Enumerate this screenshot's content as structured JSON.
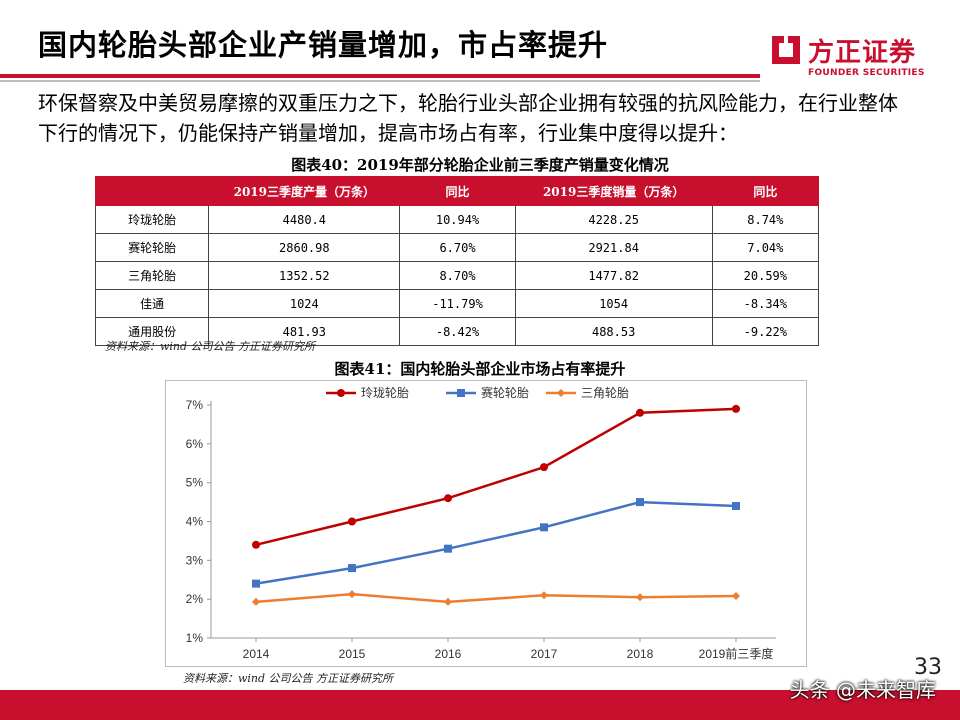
{
  "slide": {
    "title": "国内轮胎头部企业产销量增加，市占率提升",
    "intro": "环保督察及中美贸易摩擦的双重压力之下，轮胎行业头部企业拥有较强的抗风险能力，在行业整体下行的情况下，仍能保持产销量增加，提高市场占有率，行业集中度得以提升：",
    "page_number": "33",
    "watermark": "头条 @未来智库"
  },
  "logo": {
    "name_cn": "方正证券",
    "name_en": "FOUNDER SECURITIES"
  },
  "colors": {
    "brand_red": "#c8102e",
    "series_red": "#c00000",
    "series_blue": "#4472c4",
    "series_orange": "#ed7d31"
  },
  "table40": {
    "caption": "图表40：2019年部分轮胎企业前三季度产销量变化情况",
    "headers": [
      "",
      "2019三季度产量（万条）",
      "同比",
      "2019三季度销量（万条）",
      "同比"
    ],
    "rows": [
      [
        "玲珑轮胎",
        "4480.4",
        "10.94%",
        "4228.25",
        "8.74%"
      ],
      [
        "赛轮轮胎",
        "2860.98",
        "6.70%",
        "2921.84",
        "7.04%"
      ],
      [
        "三角轮胎",
        "1352.52",
        "8.70%",
        "1477.82",
        "20.59%"
      ],
      [
        "佳通",
        "1024",
        "-11.79%",
        "1054",
        "-8.34%"
      ],
      [
        "通用股份",
        "481.93",
        "-8.42%",
        "488.53",
        "-9.22%"
      ]
    ],
    "source": "资料来源：wind 公司公告  方正证券研究所"
  },
  "figure41": {
    "caption": "图表41：国内轮胎头部企业市场占有率提升",
    "source": "资料来源：wind 公司公告  方正证券研究所"
  },
  "chart_data": {
    "type": "line",
    "title": "图表41：国内轮胎头部企业市场占有率提升",
    "categories": [
      "2014",
      "2015",
      "2016",
      "2017",
      "2018",
      "2019前三季度"
    ],
    "series": [
      {
        "name": "玲珑轮胎",
        "color": "#c00000",
        "values": [
          3.4,
          4.0,
          4.6,
          5.4,
          6.8,
          6.9
        ]
      },
      {
        "name": "赛轮轮胎",
        "color": "#4472c4",
        "values": [
          2.4,
          2.8,
          3.3,
          3.85,
          4.5,
          4.4
        ]
      },
      {
        "name": "三角轮胎",
        "color": "#ed7d31",
        "values": [
          1.93,
          2.13,
          1.93,
          2.1,
          2.05,
          2.08
        ]
      }
    ],
    "yticks": [
      "1%",
      "2%",
      "3%",
      "4%",
      "5%",
      "6%",
      "7%"
    ],
    "ylim": [
      1,
      7
    ],
    "legend_position": "top",
    "grid": false
  }
}
